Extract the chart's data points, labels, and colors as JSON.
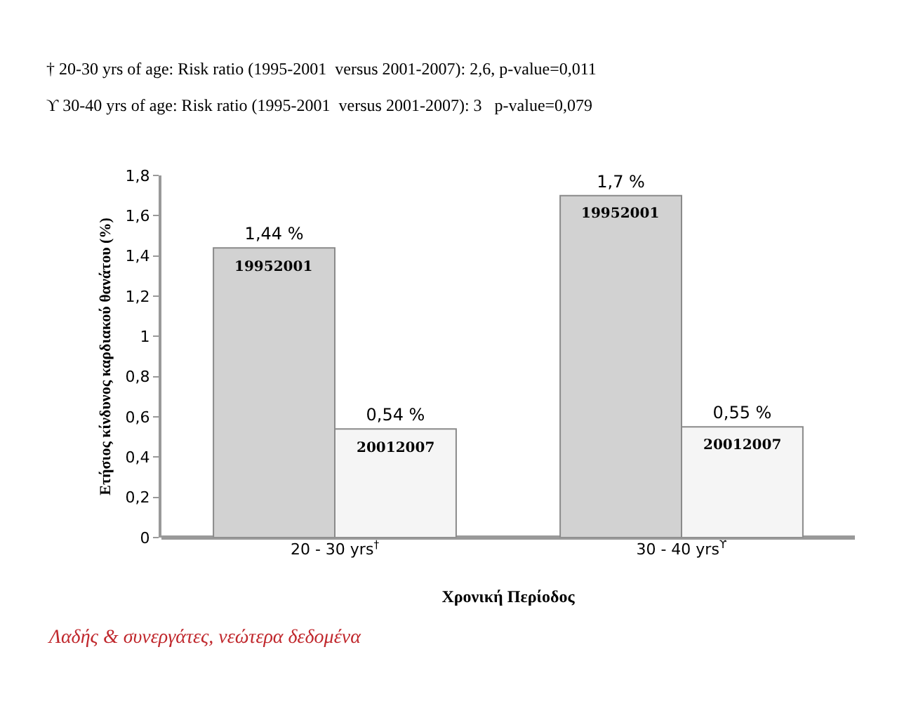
{
  "chart_data": {
    "type": "bar",
    "annotations": [
      "† 20-30 yrs of age: Risk ratio (1995-2001  versus 2001-2007): 2,6, p-value=0,011",
      "ϒ 30-40 yrs of age: Risk ratio (1995-2001  versus 2001-2007): 3   p-value=0,079",
      "Λαδής & συνεργάτες, νεώτερα δεδομένα"
    ],
    "xlabel": "Χρονική Περίοδος",
    "ylabel": "Ετήσιος κίνδυνος καρδιακού θανάτου (%)",
    "categories": [
      "20 - 30 yrs$^{†}$",
      "30 - 40 yrs$^{ϒ}$"
    ],
    "series": [
      {
        "name": "19952001",
        "color": "#d2d2d2",
        "values": [
          1.44,
          1.7
        ],
        "value_labels": [
          "1,44 %",
          "1,7 %"
        ]
      },
      {
        "name": "20012007",
        "color": "#f5f5f5",
        "values": [
          0.54,
          0.55
        ],
        "value_labels": [
          "0,54 %",
          "0,55 %"
        ]
      }
    ],
    "ylim": [
      0,
      1.8
    ],
    "yticks": [
      0,
      {
        "value": 0.2,
        "label": "0,2"
      },
      {
        "value": 0.4,
        "label": "0,4"
      },
      {
        "value": 0.6,
        "label": "0,6"
      },
      {
        "value": 0.8,
        "label": "0,8"
      },
      1,
      {
        "value": 1.2,
        "label": "1,2"
      },
      {
        "value": 1.4,
        "label": "1,4"
      },
      {
        "value": 1.6,
        "label": "1,6"
      },
      {
        "value": 1.8,
        "label": "1,8"
      }
    ],
    "grid": false,
    "legend": false
  }
}
